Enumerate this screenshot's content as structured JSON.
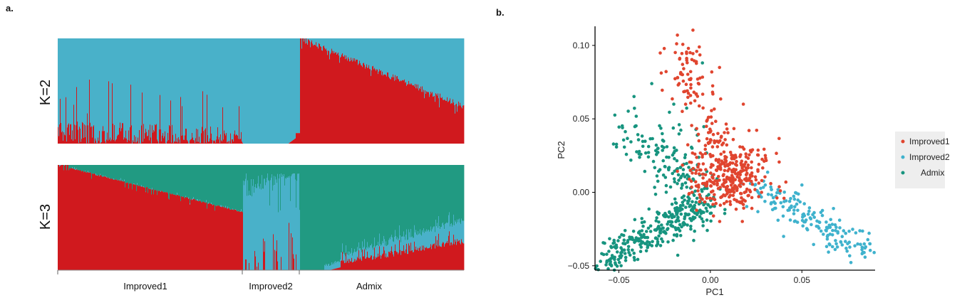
{
  "panel_a_tag": "a.",
  "panel_b_tag": "b.",
  "colors": {
    "red": "#d0191e",
    "blue": "#49b1c9",
    "green": "#219a82",
    "pc_red": "#e0452f",
    "pc_blue": "#3fb2cd",
    "pc_green": "#17947f"
  },
  "chart_data": [
    {
      "type": "bar",
      "subtype": "stacked-admixture (STRUCTURE)",
      "rows": [
        {
          "label": "K=2",
          "components": [
            "red",
            "blue"
          ]
        },
        {
          "label": "K=3",
          "components": [
            "red",
            "blue",
            "green"
          ]
        }
      ],
      "groups": [
        {
          "name": "Improved1",
          "fraction": 0.455
        },
        {
          "name": "Improved2",
          "fraction": 0.14
        },
        {
          "name": "Admix",
          "fraction": 0.405
        }
      ],
      "ylim": [
        0,
        1
      ]
    },
    {
      "type": "scatter",
      "xlabel": "PC1",
      "ylabel": "PC2",
      "xlim": [
        -0.063,
        0.09
      ],
      "ylim": [
        -0.053,
        0.113
      ],
      "xticks": [
        -0.05,
        0.0,
        0.05
      ],
      "xtick_labels": [
        "−0.05",
        "0.00",
        "0.05"
      ],
      "yticks": [
        -0.05,
        0.0,
        0.05,
        0.1
      ],
      "ytick_labels": [
        "−0.05",
        "0.00",
        "0.05",
        "0.10"
      ],
      "legend_position": "right",
      "series": [
        {
          "name": "Improved1",
          "color": "#e0452f",
          "centroid": [
            0.008,
            0.01
          ],
          "spread": [
            0.014,
            0.025
          ],
          "n": 480,
          "landmarks": [
            [
              -0.018,
              0.107
            ],
            [
              -0.012,
              0.098
            ],
            [
              0.005,
              0.085
            ],
            [
              0.018,
              0.06
            ],
            [
              0.03,
              0.025
            ],
            [
              0.028,
              0.0
            ],
            [
              -0.01,
              0.0
            ]
          ]
        },
        {
          "name": "Improved2",
          "color": "#3fb2cd",
          "centroid": [
            0.05,
            -0.015
          ],
          "spread": [
            0.018,
            0.01
          ],
          "n": 180,
          "landmarks": [
            [
              0.084,
              -0.041
            ],
            [
              0.075,
              -0.035
            ],
            [
              0.03,
              0.005
            ],
            [
              0.05,
              0.005
            ],
            [
              0.04,
              -0.03
            ]
          ]
        },
        {
          "name": "Admix",
          "color": "#17947f",
          "centroid": [
            -0.025,
            -0.015
          ],
          "spread": [
            0.02,
            0.018
          ],
          "n": 460,
          "landmarks": [
            [
              -0.06,
              -0.047
            ],
            [
              -0.048,
              0.044
            ],
            [
              -0.032,
              0.074
            ],
            [
              -0.02,
              0.06
            ],
            [
              -0.01,
              0.03
            ],
            [
              0.0,
              -0.01
            ],
            [
              -0.035,
              -0.035
            ]
          ]
        }
      ]
    }
  ]
}
